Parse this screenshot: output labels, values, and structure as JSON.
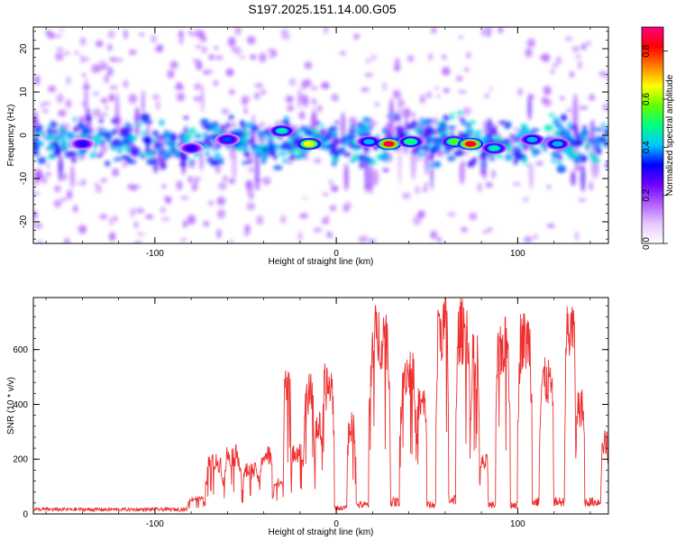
{
  "title": "S197.2025.151.14.00.G05",
  "chart_data": [
    {
      "type": "heatmap",
      "xlabel": "Height of straight line (km)",
      "ylabel": "Frequency (Hz)",
      "xlim": [
        -167,
        150
      ],
      "ylim": [
        -25,
        25
      ],
      "xticks": [
        -100,
        0,
        100
      ],
      "yticks": [
        -20,
        -10,
        0,
        10,
        20
      ],
      "colorbar": {
        "label": "Normalized spectral amplitude",
        "range": [
          0,
          0.9
        ],
        "ticks": [
          0.0,
          0.2,
          0.4,
          0.6,
          0.8
        ],
        "colormap": [
          "#ffffff",
          "#e8c8ff",
          "#b060ff",
          "#7000ff",
          "#0000ff",
          "#00c8ff",
          "#00ff80",
          "#60ff00",
          "#ffff00",
          "#ff8000",
          "#ff0000",
          "#ff0080"
        ]
      },
      "ridge_center_hz": -1.5,
      "peaks": [
        {
          "x": -30,
          "y": 1,
          "amp": 0.45
        },
        {
          "x": -15,
          "y": -2,
          "amp": 0.65
        },
        {
          "x": 18,
          "y": -1.5,
          "amp": 0.4
        },
        {
          "x": 29,
          "y": -2,
          "amp": 0.85
        },
        {
          "x": 41,
          "y": -1.5,
          "amp": 0.5
        },
        {
          "x": 65,
          "y": -1.5,
          "amp": 0.55
        },
        {
          "x": 74,
          "y": -2,
          "amp": 0.85
        },
        {
          "x": 87,
          "y": -3,
          "amp": 0.45
        },
        {
          "x": 108,
          "y": -1,
          "amp": 0.4
        },
        {
          "x": 122,
          "y": -2,
          "amp": 0.4
        },
        {
          "x": -140,
          "y": -2,
          "amp": 0.3
        },
        {
          "x": -80,
          "y": -3,
          "amp": 0.3
        },
        {
          "x": -60,
          "y": -1,
          "amp": 0.35
        }
      ]
    },
    {
      "type": "line",
      "xlabel": "Height of straight line (km)",
      "ylabel": "SNR (10 * v/v)",
      "xlim": [
        -167,
        150
      ],
      "ylim": [
        0,
        790
      ],
      "xticks": [
        -100,
        0,
        100
      ],
      "yticks": [
        0,
        200,
        400,
        600
      ],
      "series_color": "#ee3030",
      "bursts": [
        {
          "x0": -167,
          "x1": -82,
          "level": 15
        },
        {
          "x0": -82,
          "x1": -72,
          "level": 60
        },
        {
          "x0": -72,
          "x1": -62,
          "level": 200
        },
        {
          "x0": -62,
          "x1": -52,
          "level": 230
        },
        {
          "x0": -52,
          "x1": -42,
          "level": 170
        },
        {
          "x0": -42,
          "x1": -35,
          "level": 230
        },
        {
          "x0": -35,
          "x1": -29,
          "level": 120
        },
        {
          "x0": -29,
          "x1": -25,
          "level": 550
        },
        {
          "x0": -25,
          "x1": -18,
          "level": 250
        },
        {
          "x0": -18,
          "x1": -12,
          "level": 470
        },
        {
          "x0": -12,
          "x1": -8,
          "level": 340
        },
        {
          "x0": -8,
          "x1": -1,
          "level": 500
        },
        {
          "x0": -1,
          "x1": 6,
          "level": 20
        },
        {
          "x0": 6,
          "x1": 11,
          "level": 340
        },
        {
          "x0": 11,
          "x1": 18,
          "level": 30
        },
        {
          "x0": 18,
          "x1": 30,
          "level": 700
        },
        {
          "x0": 30,
          "x1": 35,
          "level": 40
        },
        {
          "x0": 35,
          "x1": 44,
          "level": 560
        },
        {
          "x0": 44,
          "x1": 50,
          "level": 430
        },
        {
          "x0": 50,
          "x1": 55,
          "level": 30
        },
        {
          "x0": 55,
          "x1": 62,
          "level": 740
        },
        {
          "x0": 62,
          "x1": 66,
          "level": 50
        },
        {
          "x0": 66,
          "x1": 74,
          "level": 720
        },
        {
          "x0": 74,
          "x1": 79,
          "level": 600
        },
        {
          "x0": 79,
          "x1": 84,
          "level": 200
        },
        {
          "x0": 84,
          "x1": 88,
          "level": 30
        },
        {
          "x0": 88,
          "x1": 96,
          "level": 660
        },
        {
          "x0": 96,
          "x1": 100,
          "level": 30
        },
        {
          "x0": 100,
          "x1": 108,
          "level": 680
        },
        {
          "x0": 108,
          "x1": 112,
          "level": 40
        },
        {
          "x0": 112,
          "x1": 120,
          "level": 520
        },
        {
          "x0": 120,
          "x1": 126,
          "level": 40
        },
        {
          "x0": 126,
          "x1": 132,
          "level": 720
        },
        {
          "x0": 132,
          "x1": 137,
          "level": 420
        },
        {
          "x0": 137,
          "x1": 146,
          "level": 40
        },
        {
          "x0": 146,
          "x1": 150,
          "level": 280
        }
      ]
    }
  ]
}
